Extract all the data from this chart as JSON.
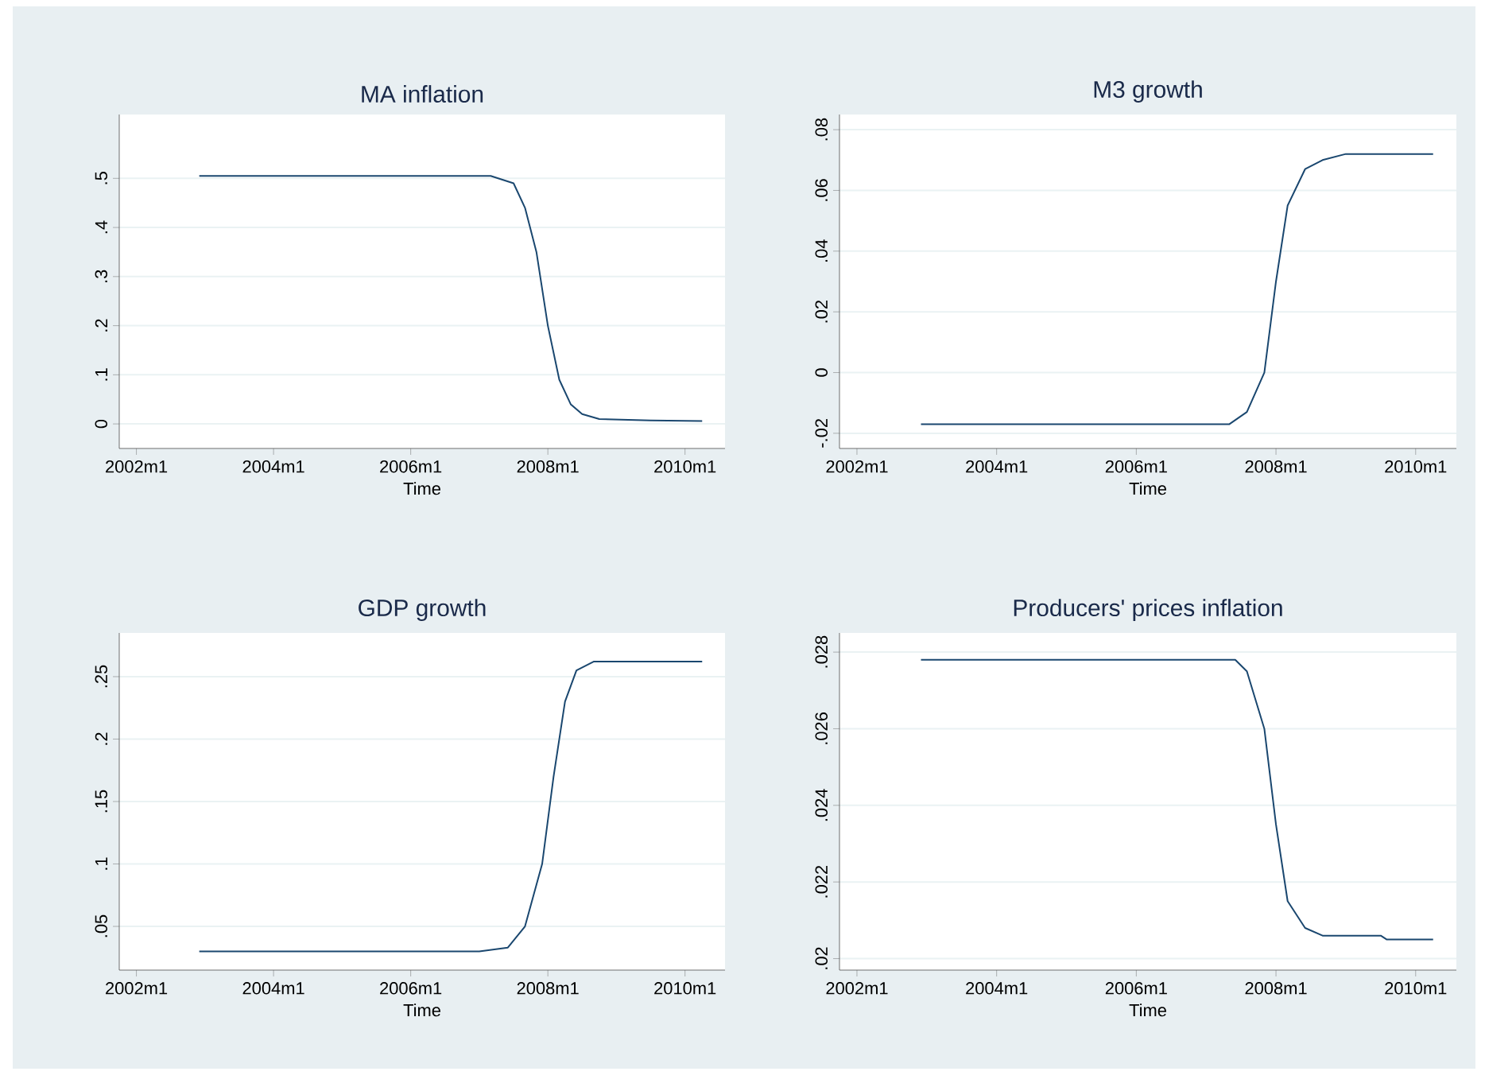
{
  "chart_data": [
    {
      "type": "line",
      "title": "MA inflation",
      "xlabel": "Time",
      "grid": "y",
      "color": "#1a476f",
      "x": [
        "2002-12",
        "2007-03",
        "2007-07",
        "2007-09",
        "2007-11",
        "2008-01",
        "2008-03",
        "2008-05",
        "2008-07",
        "2008-10",
        "2009-07",
        "2010-04"
      ],
      "values": [
        0.505,
        0.505,
        0.49,
        0.44,
        0.35,
        0.2,
        0.09,
        0.04,
        0.02,
        0.01,
        0.007,
        0.006
      ],
      "xlim": [
        "2001-10",
        "2010-08"
      ],
      "ylim": [
        -0.05,
        0.63
      ],
      "xticks": [
        {
          "value": "2002-01",
          "label": "2002m1"
        },
        {
          "value": "2004-01",
          "label": "2004m1"
        },
        {
          "value": "2006-01",
          "label": "2006m1"
        },
        {
          "value": "2008-01",
          "label": "2008m1"
        },
        {
          "value": "2010-01",
          "label": "2010m1"
        }
      ],
      "yticks": [
        0,
        {
          "value": 0.1,
          "label": ".1"
        },
        {
          "value": 0.2,
          "label": ".2"
        },
        {
          "value": 0.3,
          "label": ".3"
        },
        {
          "value": 0.4,
          "label": ".4"
        },
        {
          "value": 0.5,
          "label": ".5"
        }
      ]
    },
    {
      "type": "line",
      "title": "M3 growth",
      "xlabel": "Time",
      "grid": "y",
      "color": "#1a476f",
      "x": [
        "2002-12",
        "2007-05",
        "2007-08",
        "2007-11",
        "2008-01",
        "2008-03",
        "2008-06",
        "2008-09",
        "2009-01",
        "2010-04"
      ],
      "values": [
        -0.017,
        -0.017,
        -0.013,
        0.0,
        0.03,
        0.055,
        0.067,
        0.07,
        0.072,
        0.072
      ],
      "xlim": [
        "2001-10",
        "2010-08"
      ],
      "ylim": [
        -0.025,
        0.085
      ],
      "xticks": [
        {
          "value": "2002-01",
          "label": "2002m1"
        },
        {
          "value": "2004-01",
          "label": "2004m1"
        },
        {
          "value": "2006-01",
          "label": "2006m1"
        },
        {
          "value": "2008-01",
          "label": "2008m1"
        },
        {
          "value": "2010-01",
          "label": "2010m1"
        }
      ],
      "yticks": [
        {
          "value": -0.02,
          "label": "-.02"
        },
        0,
        {
          "value": 0.02,
          "label": ".02"
        },
        {
          "value": 0.04,
          "label": ".04"
        },
        {
          "value": 0.06,
          "label": ".06"
        },
        {
          "value": 0.08,
          "label": ".08"
        }
      ]
    },
    {
      "type": "line",
      "title": "GDP growth",
      "xlabel": "Time",
      "grid": "y",
      "color": "#1a476f",
      "x": [
        "2002-12",
        "2007-01",
        "2007-06",
        "2007-09",
        "2007-12",
        "2008-02",
        "2008-04",
        "2008-06",
        "2008-09",
        "2010-04"
      ],
      "values": [
        0.03,
        0.03,
        0.033,
        0.05,
        0.1,
        0.17,
        0.23,
        0.255,
        0.262,
        0.262
      ],
      "xlim": [
        "2001-10",
        "2010-08"
      ],
      "ylim": [
        0.015,
        0.285
      ],
      "xticks": [
        {
          "value": "2002-01",
          "label": "2002m1"
        },
        {
          "value": "2004-01",
          "label": "2004m1"
        },
        {
          "value": "2006-01",
          "label": "2006m1"
        },
        {
          "value": "2008-01",
          "label": "2008m1"
        },
        {
          "value": "2010-01",
          "label": "2010m1"
        }
      ],
      "yticks": [
        {
          "value": 0.05,
          "label": ".05"
        },
        {
          "value": 0.1,
          "label": ".1"
        },
        {
          "value": 0.15,
          "label": ".15"
        },
        {
          "value": 0.2,
          "label": ".2"
        },
        {
          "value": 0.25,
          "label": ".25"
        }
      ]
    },
    {
      "type": "line",
      "title": "Producers' prices inflation",
      "xlabel": "Time",
      "grid": "y",
      "color": "#1a476f",
      "x": [
        "2002-12",
        "2007-06",
        "2007-08",
        "2007-11",
        "2008-01",
        "2008-03",
        "2008-06",
        "2008-09",
        "2009-07",
        "2009-08",
        "2010-04"
      ],
      "values": [
        0.0278,
        0.0278,
        0.0275,
        0.026,
        0.0235,
        0.0215,
        0.0208,
        0.0206,
        0.0206,
        0.0205,
        0.0205
      ],
      "xlim": [
        "2001-10",
        "2010-08"
      ],
      "ylim": [
        0.0197,
        0.0285
      ],
      "xticks": [
        {
          "value": "2002-01",
          "label": "2002m1"
        },
        {
          "value": "2004-01",
          "label": "2004m1"
        },
        {
          "value": "2006-01",
          "label": "2006m1"
        },
        {
          "value": "2008-01",
          "label": "2008m1"
        },
        {
          "value": "2010-01",
          "label": "2010m1"
        }
      ],
      "yticks": [
        {
          "value": 0.02,
          "label": ".02"
        },
        {
          "value": 0.022,
          "label": ".022"
        },
        {
          "value": 0.024,
          "label": ".024"
        },
        {
          "value": 0.026,
          "label": ".026"
        },
        {
          "value": 0.028,
          "label": ".028"
        }
      ]
    }
  ]
}
